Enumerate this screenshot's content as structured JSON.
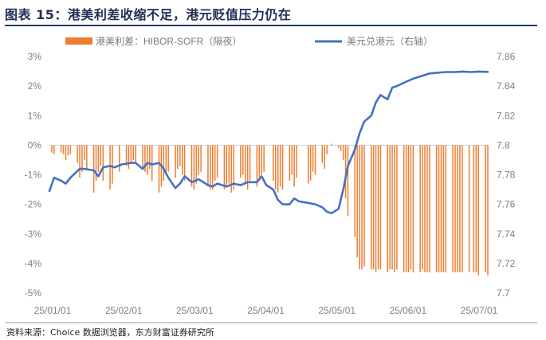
{
  "header": {
    "title": "图表 15：港美利差收缩不足，港元贬值压力仍在"
  },
  "footer": {
    "source": "资料来源：Choice 数据浏览器，东方财富证券研究所"
  },
  "colors": {
    "spread_bar": "#ED7D31",
    "fx_line": "#4472C4",
    "axis": "#d9d9d9",
    "tick_text": "#7f7f7f",
    "title": "#1f2d57"
  },
  "chart_data": {
    "type": "bar+line",
    "title": "",
    "x_ticks": [
      "25/01/01",
      "25/02/01",
      "25/03/01",
      "25/04/01",
      "25/05/01",
      "25/06/01",
      "25/07/01"
    ],
    "x_range": [
      "2025-01-01",
      "2025-07-08"
    ],
    "y_left": {
      "range": [
        -5,
        3
      ],
      "ticks": [
        -5,
        -4,
        -3,
        -2,
        -1,
        0,
        1,
        2,
        3
      ],
      "tick_labels": [
        "-5%",
        "-4%",
        "-3%",
        "-2%",
        "-1%",
        "0%",
        "1%",
        "2%",
        "3%"
      ]
    },
    "y_right": {
      "range": [
        7.7,
        7.86
      ],
      "ticks": [
        7.7,
        7.72,
        7.74,
        7.76,
        7.78,
        7.8,
        7.82,
        7.84,
        7.86
      ],
      "tick_labels": [
        "7.7",
        "7.72",
        "7.74",
        "7.76",
        "7.78",
        "7.8",
        "7.82",
        "7.84",
        "7.86"
      ]
    },
    "legend_position": "top",
    "series": [
      {
        "name": "港美利差：HIBOR-SOFR（隔夜）",
        "kind": "bar",
        "axis": "left",
        "unit": "%",
        "points": [
          [
            "2025-01-02",
            -0.25
          ],
          [
            "2025-01-03",
            -0.3
          ],
          [
            "2025-01-06",
            -0.25
          ],
          [
            "2025-01-07",
            -0.3
          ],
          [
            "2025-01-08",
            -0.5
          ],
          [
            "2025-01-09",
            -0.35
          ],
          [
            "2025-01-10",
            -0.3
          ],
          [
            "2025-01-13",
            -0.6
          ],
          [
            "2025-01-14",
            -1.1
          ],
          [
            "2025-01-15",
            -0.9
          ],
          [
            "2025-01-16",
            -0.5
          ],
          [
            "2025-01-17",
            -0.8
          ],
          [
            "2025-01-20",
            -1.6
          ],
          [
            "2025-01-21",
            -1.2
          ],
          [
            "2025-01-22",
            -0.9
          ],
          [
            "2025-01-23",
            -0.7
          ],
          [
            "2025-01-24",
            -1.2
          ],
          [
            "2025-01-27",
            -1.5
          ],
          [
            "2025-01-28",
            -1.3
          ],
          [
            "2025-01-31",
            -0.9
          ],
          [
            "2025-02-03",
            -0.7
          ],
          [
            "2025-02-04",
            -0.8
          ],
          [
            "2025-02-05",
            -0.6
          ],
          [
            "2025-02-06",
            -0.5
          ],
          [
            "2025-02-07",
            -0.6
          ],
          [
            "2025-02-10",
            -0.8
          ],
          [
            "2025-02-11",
            -0.9
          ],
          [
            "2025-02-12",
            -1.0
          ],
          [
            "2025-02-13",
            -0.8
          ],
          [
            "2025-02-14",
            -1.2
          ],
          [
            "2025-02-17",
            -1.6
          ],
          [
            "2025-02-18",
            -1.4
          ],
          [
            "2025-02-19",
            -1.2
          ],
          [
            "2025-02-20",
            -1.0
          ],
          [
            "2025-02-21",
            -0.9
          ],
          [
            "2025-02-24",
            -1.1
          ],
          [
            "2025-02-25",
            -0.8
          ],
          [
            "2025-02-26",
            -0.7
          ],
          [
            "2025-02-27",
            -1.0
          ],
          [
            "2025-02-28",
            -1.2
          ],
          [
            "2025-03-03",
            -1.4
          ],
          [
            "2025-03-04",
            -1.5
          ],
          [
            "2025-03-05",
            -1.3
          ],
          [
            "2025-03-06",
            -1.0
          ],
          [
            "2025-03-07",
            -0.9
          ],
          [
            "2025-03-10",
            -1.4
          ],
          [
            "2025-03-11",
            -1.5
          ],
          [
            "2025-03-12",
            -1.5
          ],
          [
            "2025-03-13",
            -1.2
          ],
          [
            "2025-03-14",
            -1.1
          ],
          [
            "2025-03-17",
            -1.5
          ],
          [
            "2025-03-18",
            -1.4
          ],
          [
            "2025-03-19",
            -1.3
          ],
          [
            "2025-03-20",
            -1.6
          ],
          [
            "2025-03-21",
            -1.5
          ],
          [
            "2025-03-24",
            -1.1
          ],
          [
            "2025-03-25",
            -1.0
          ],
          [
            "2025-03-26",
            -1.3
          ],
          [
            "2025-03-27",
            -1.5
          ],
          [
            "2025-03-28",
            -1.2
          ],
          [
            "2025-03-31",
            -1.4
          ],
          [
            "2025-04-01",
            -1.2
          ],
          [
            "2025-04-02",
            -1.0
          ],
          [
            "2025-04-03",
            -0.9
          ],
          [
            "2025-04-07",
            -1.2
          ],
          [
            "2025-04-08",
            -1.5
          ],
          [
            "2025-04-09",
            -1.6
          ],
          [
            "2025-04-10",
            -1.4
          ],
          [
            "2025-04-11",
            -1.5
          ],
          [
            "2025-04-14",
            -1.2
          ],
          [
            "2025-04-15",
            -1.0
          ],
          [
            "2025-04-16",
            -1.4
          ],
          [
            "2025-04-17",
            -1.1
          ],
          [
            "2025-04-22",
            -1.3
          ],
          [
            "2025-04-23",
            -1.2
          ],
          [
            "2025-04-24",
            -0.9
          ],
          [
            "2025-04-25",
            -1.0
          ],
          [
            "2025-04-28",
            -0.6
          ],
          [
            "2025-04-29",
            -0.8
          ],
          [
            "2025-04-30",
            -0.3
          ],
          [
            "2025-05-02",
            0.05
          ],
          [
            "2025-05-05",
            -0.1
          ],
          [
            "2025-05-06",
            -0.2
          ],
          [
            "2025-05-07",
            -0.5
          ],
          [
            "2025-05-08",
            -1.8
          ],
          [
            "2025-05-09",
            -2.4
          ],
          [
            "2025-05-12",
            -3.1
          ],
          [
            "2025-05-13",
            -3.8
          ],
          [
            "2025-05-14",
            -4.2
          ],
          [
            "2025-05-15",
            -4.2
          ],
          [
            "2025-05-16",
            -4.1
          ],
          [
            "2025-05-19",
            -4.2
          ],
          [
            "2025-05-20",
            -4.2
          ],
          [
            "2025-05-21",
            -4.3
          ],
          [
            "2025-05-22",
            -4.2
          ],
          [
            "2025-05-23",
            -4.2
          ],
          [
            "2025-05-26",
            -4.3
          ],
          [
            "2025-05-27",
            -4.2
          ],
          [
            "2025-05-28",
            -4.2
          ],
          [
            "2025-05-29",
            -4.3
          ],
          [
            "2025-05-30",
            -4.2
          ],
          [
            "2025-06-02",
            -4.3
          ],
          [
            "2025-06-03",
            -4.3
          ],
          [
            "2025-06-04",
            -4.3
          ],
          [
            "2025-06-05",
            -4.2
          ],
          [
            "2025-06-06",
            -4.3
          ],
          [
            "2025-06-09",
            -4.3
          ],
          [
            "2025-06-10",
            -4.2
          ],
          [
            "2025-06-11",
            -4.3
          ],
          [
            "2025-06-12",
            -4.3
          ],
          [
            "2025-06-13",
            -4.3
          ],
          [
            "2025-06-16",
            -4.3
          ],
          [
            "2025-06-17",
            -4.3
          ],
          [
            "2025-06-18",
            -4.3
          ],
          [
            "2025-06-19",
            -4.3
          ],
          [
            "2025-06-20",
            -4.3
          ],
          [
            "2025-06-23",
            -4.3
          ],
          [
            "2025-06-24",
            -4.3
          ],
          [
            "2025-06-25",
            -4.3
          ],
          [
            "2025-06-26",
            -4.3
          ],
          [
            "2025-06-27",
            -4.3
          ],
          [
            "2025-06-30",
            -4.3
          ],
          [
            "2025-07-02",
            -4.3
          ],
          [
            "2025-07-03",
            -4.3
          ],
          [
            "2025-07-04",
            -4.4
          ],
          [
            "2025-07-07",
            -4.3
          ],
          [
            "2025-07-08",
            -4.4
          ]
        ]
      },
      {
        "name": "美元兑港元（右轴）",
        "kind": "line",
        "axis": "right",
        "unit": "HKD per USD",
        "points": [
          [
            "2025-01-01",
            7.769
          ],
          [
            "2025-01-03",
            7.778
          ],
          [
            "2025-01-06",
            7.776
          ],
          [
            "2025-01-08",
            7.774
          ],
          [
            "2025-01-10",
            7.778
          ],
          [
            "2025-01-14",
            7.784
          ],
          [
            "2025-01-16",
            7.784
          ],
          [
            "2025-01-20",
            7.783
          ],
          [
            "2025-01-22",
            7.779
          ],
          [
            "2025-01-24",
            7.785
          ],
          [
            "2025-01-27",
            7.786
          ],
          [
            "2025-01-29",
            7.785
          ],
          [
            "2025-02-01",
            7.787
          ],
          [
            "2025-02-05",
            7.788
          ],
          [
            "2025-02-07",
            7.788
          ],
          [
            "2025-02-10",
            7.784
          ],
          [
            "2025-02-12",
            7.788
          ],
          [
            "2025-02-14",
            7.787
          ],
          [
            "2025-02-17",
            7.788
          ],
          [
            "2025-02-19",
            7.784
          ],
          [
            "2025-02-21",
            7.778
          ],
          [
            "2025-02-24",
            7.771
          ],
          [
            "2025-02-26",
            7.774
          ],
          [
            "2025-02-28",
            7.779
          ],
          [
            "2025-03-03",
            7.775
          ],
          [
            "2025-03-06",
            7.777
          ],
          [
            "2025-03-10",
            7.773
          ],
          [
            "2025-03-12",
            7.772
          ],
          [
            "2025-03-14",
            7.774
          ],
          [
            "2025-03-18",
            7.772
          ],
          [
            "2025-03-21",
            7.774
          ],
          [
            "2025-03-24",
            7.773
          ],
          [
            "2025-03-27",
            7.775
          ],
          [
            "2025-03-31",
            7.775
          ],
          [
            "2025-04-02",
            7.779
          ],
          [
            "2025-04-04",
            7.773
          ],
          [
            "2025-04-07",
            7.77
          ],
          [
            "2025-04-09",
            7.763
          ],
          [
            "2025-04-11",
            7.76
          ],
          [
            "2025-04-14",
            7.76
          ],
          [
            "2025-04-16",
            7.764
          ],
          [
            "2025-04-18",
            7.762
          ],
          [
            "2025-04-22",
            7.761
          ],
          [
            "2025-04-25",
            7.76
          ],
          [
            "2025-04-28",
            7.758
          ],
          [
            "2025-04-30",
            7.755
          ],
          [
            "2025-05-02",
            7.754
          ],
          [
            "2025-05-05",
            7.757
          ],
          [
            "2025-05-07",
            7.77
          ],
          [
            "2025-05-09",
            7.786
          ],
          [
            "2025-05-12",
            7.797
          ],
          [
            "2025-05-14",
            7.808
          ],
          [
            "2025-05-16",
            7.816
          ],
          [
            "2025-05-19",
            7.82
          ],
          [
            "2025-05-21",
            7.829
          ],
          [
            "2025-05-23",
            7.834
          ],
          [
            "2025-05-26",
            7.831
          ],
          [
            "2025-05-28",
            7.839
          ],
          [
            "2025-05-30",
            7.84
          ],
          [
            "2025-06-03",
            7.843
          ],
          [
            "2025-06-06",
            7.845
          ],
          [
            "2025-06-10",
            7.847
          ],
          [
            "2025-06-13",
            7.8485
          ],
          [
            "2025-06-16",
            7.849
          ],
          [
            "2025-06-20",
            7.8495
          ],
          [
            "2025-06-24",
            7.8495
          ],
          [
            "2025-06-27",
            7.8498
          ],
          [
            "2025-07-01",
            7.8495
          ],
          [
            "2025-07-04",
            7.8498
          ],
          [
            "2025-07-08",
            7.8496
          ]
        ]
      }
    ]
  }
}
